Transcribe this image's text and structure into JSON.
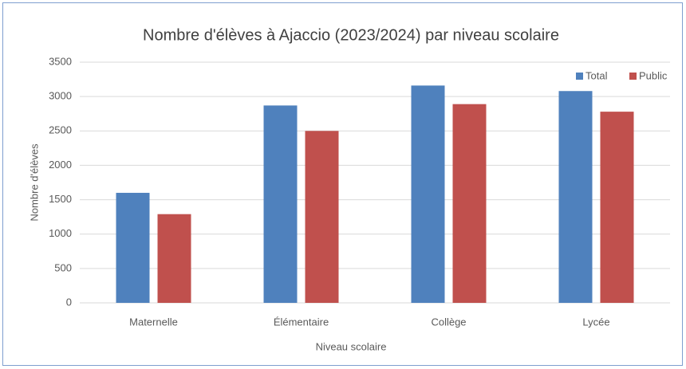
{
  "chart_data": {
    "type": "bar",
    "title": "Nombre d'élèves à Ajaccio (2023/2024) par niveau scolaire",
    "x_label": "Niveau scolaire",
    "y_label": "Nombre d'élèves",
    "categories": [
      "Maternelle",
      "Élémentaire",
      "Collège",
      "Lycée"
    ],
    "series": [
      {
        "name": "Total",
        "color": "#4f81bd",
        "values": [
          1600,
          2870,
          3160,
          3080
        ]
      },
      {
        "name": "Public",
        "color": "#c0504d",
        "values": [
          1290,
          2500,
          2890,
          2780
        ]
      }
    ],
    "ylim": [
      0,
      3500
    ],
    "yticks": [
      0,
      500,
      1000,
      1500,
      2000,
      2500,
      3000,
      3500
    ],
    "grid": true,
    "legend": "top-right"
  }
}
